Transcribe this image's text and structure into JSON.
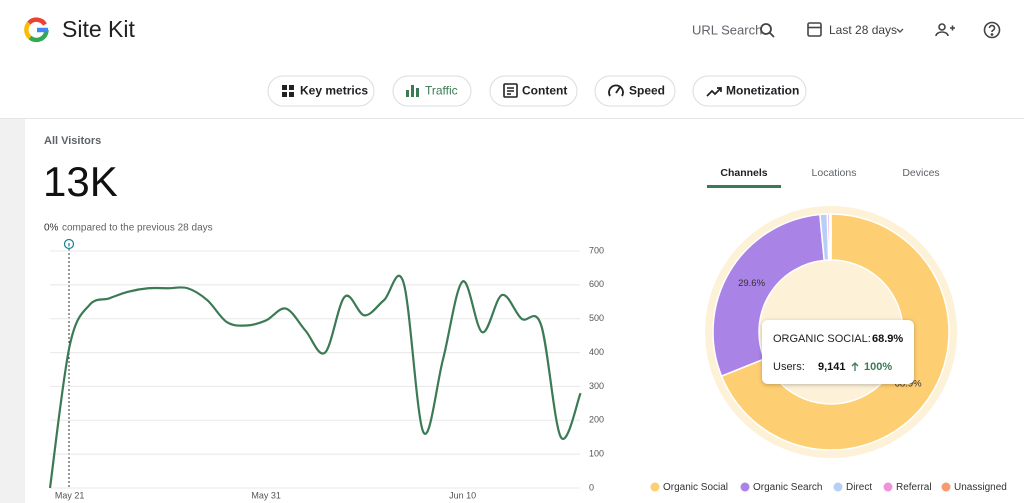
{
  "header": {
    "title": "Site Kit",
    "search": "URL Search",
    "date_range": "Last 28 days"
  },
  "nav": [
    "Key metrics",
    "Traffic",
    "Content",
    "Speed",
    "Monetization"
  ],
  "panel": {
    "title": "All Visitors",
    "total": "13K",
    "change": "0%",
    "comparison": "compared to the previous 28 days"
  },
  "tabs": [
    "Channels",
    "Locations",
    "Devices"
  ],
  "tooltip": {
    "label": "ORGANIC SOCIAL:",
    "value": "68.9%",
    "users_label": "Users:",
    "users": "9,141",
    "change": "100%"
  },
  "chart_data": [
    {
      "type": "line",
      "categories": [
        null,
        "May 21",
        null,
        null,
        null,
        null,
        null,
        null,
        null,
        null,
        null,
        "May 31",
        null,
        null,
        null,
        null,
        null,
        null,
        null,
        null,
        null,
        "Jun 10",
        null,
        null,
        null,
        null,
        null,
        null
      ],
      "values": [
        0,
        420,
        540,
        560,
        580,
        590,
        590,
        590,
        555,
        490,
        480,
        495,
        530,
        465,
        400,
        565,
        510,
        555,
        605,
        165,
        380,
        610,
        460,
        570,
        500,
        480,
        150,
        280
      ],
      "color": "#3c7a55",
      "ylim": [
        0,
        700
      ],
      "yticks": [
        0,
        100,
        200,
        300,
        400,
        500,
        600,
        700
      ],
      "grid": true
    },
    {
      "type": "pie",
      "categories": [
        "Organic Social",
        "Organic Search",
        "Direct",
        "Referral",
        "Unassigned"
      ],
      "values": [
        68.9,
        29.6,
        1.0,
        0.3,
        0.2
      ],
      "value_labels": [
        "68.9%",
        "29.6%",
        null,
        null,
        null
      ],
      "colors": [
        "#fece72",
        "#a983e6",
        "#b8cff5",
        "#ee92da",
        "#f79a72"
      ]
    }
  ]
}
